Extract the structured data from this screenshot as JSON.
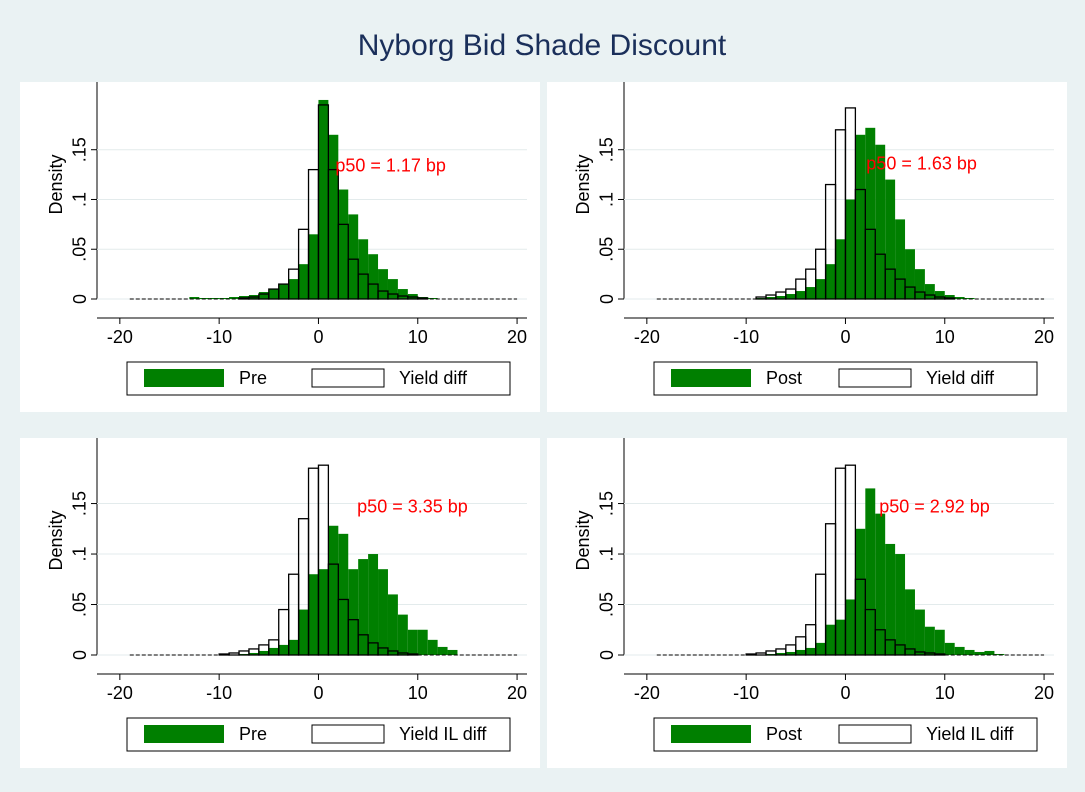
{
  "title": "Nyborg Bid Shade Discount",
  "chart_data": [
    {
      "type": "histogram",
      "ylabel": "Density",
      "annotation": "p50 = 1.17 bp",
      "grid": true,
      "bins": [
        -19,
        -18,
        -17,
        -16,
        -15,
        -14,
        -13,
        -12,
        -11,
        -10,
        -9,
        -8,
        -7,
        -6,
        -5,
        -4,
        -3,
        -2,
        -1,
        0,
        1,
        2,
        3,
        4,
        5,
        6,
        7,
        8,
        9,
        10,
        11,
        12,
        13,
        14,
        15,
        16,
        17,
        18,
        19,
        20
      ],
      "xlim": [
        -22.3,
        21
      ],
      "ylim": [
        0,
        0.21
      ],
      "xticks": [
        -20,
        -10,
        0,
        10,
        20
      ],
      "yticks": [
        0,
        {
          "value": 0.05,
          "label": ".05"
        },
        {
          "value": 0.1,
          "label": ".1"
        },
        {
          "value": 0.15,
          "label": ".15"
        }
      ],
      "series": [
        {
          "name": "Pre",
          "color": "#007f00",
          "edgecolor": "none",
          "values": [
            0,
            0,
            0,
            0,
            0,
            0,
            0.002,
            0.001,
            0.001,
            0.001,
            0.002,
            0.003,
            0.004,
            0.007,
            0.01,
            0.015,
            0.02,
            0.035,
            0.065,
            0.2,
            0.165,
            0.11,
            0.085,
            0.06,
            0.045,
            0.03,
            0.02,
            0.01,
            0.005,
            0.002,
            0.001,
            0,
            0,
            0,
            0,
            0,
            0,
            0,
            0
          ]
        },
        {
          "name": "Yield diff",
          "color": "none",
          "edgecolor": "#000000",
          "values": [
            0,
            0,
            0,
            0,
            0,
            0,
            0,
            0,
            0,
            0,
            0,
            0.001,
            0.002,
            0.005,
            0.01,
            0.015,
            0.03,
            0.07,
            0.13,
            0.195,
            0.13,
            0.075,
            0.04,
            0.025,
            0.015,
            0.008,
            0.005,
            0.003,
            0.002,
            0.001,
            0,
            0,
            0,
            0,
            0,
            0,
            0,
            0,
            0
          ]
        }
      ]
    },
    {
      "type": "histogram",
      "ylabel": "Density",
      "annotation": "p50 = 1.63 bp",
      "grid": true,
      "bins": [
        -19,
        -18,
        -17,
        -16,
        -15,
        -14,
        -13,
        -12,
        -11,
        -10,
        -9,
        -8,
        -7,
        -6,
        -5,
        -4,
        -3,
        -2,
        -1,
        0,
        1,
        2,
        3,
        4,
        5,
        6,
        7,
        8,
        9,
        10,
        11,
        12,
        13,
        14,
        15,
        16,
        17,
        18,
        19,
        20
      ],
      "xlim": [
        -22.3,
        21
      ],
      "ylim": [
        0,
        0.21
      ],
      "xticks": [
        -20,
        -10,
        0,
        10,
        20
      ],
      "yticks": [
        0,
        {
          "value": 0.05,
          "label": ".05"
        },
        {
          "value": 0.1,
          "label": ".1"
        },
        {
          "value": 0.15,
          "label": ".15"
        }
      ],
      "series": [
        {
          "name": "Post",
          "color": "#007f00",
          "edgecolor": "none",
          "values": [
            0,
            0,
            0,
            0,
            0,
            0,
            0,
            0,
            0,
            0,
            0.001,
            0.002,
            0.003,
            0.005,
            0.008,
            0.012,
            0.02,
            0.035,
            0.06,
            0.1,
            0.165,
            0.172,
            0.155,
            0.12,
            0.08,
            0.05,
            0.03,
            0.015,
            0.008,
            0.004,
            0.002,
            0.001,
            0,
            0,
            0,
            0,
            0,
            0,
            0
          ]
        },
        {
          "name": "Yield diff",
          "color": "none",
          "edgecolor": "#000000",
          "values": [
            0,
            0,
            0,
            0,
            0,
            0,
            0,
            0,
            0,
            0,
            0.002,
            0.004,
            0.007,
            0.01,
            0.02,
            0.03,
            0.05,
            0.115,
            0.17,
            0.192,
            0.11,
            0.07,
            0.045,
            0.03,
            0.02,
            0.012,
            0.007,
            0.004,
            0.002,
            0.001,
            0,
            0,
            0,
            0,
            0,
            0,
            0,
            0,
            0
          ]
        }
      ]
    },
    {
      "type": "histogram",
      "ylabel": "Density",
      "annotation": "p50 = 3.35 bp",
      "grid": true,
      "bins": [
        -19,
        -18,
        -17,
        -16,
        -15,
        -14,
        -13,
        -12,
        -11,
        -10,
        -9,
        -8,
        -7,
        -6,
        -5,
        -4,
        -3,
        -2,
        -1,
        0,
        1,
        2,
        3,
        4,
        5,
        6,
        7,
        8,
        9,
        10,
        11,
        12,
        13,
        14,
        15,
        16,
        17,
        18,
        19,
        20
      ],
      "xlim": [
        -22.3,
        21
      ],
      "ylim": [
        0,
        0.207
      ],
      "xticks": [
        -20,
        -10,
        0,
        10,
        20
      ],
      "yticks": [
        0,
        {
          "value": 0.05,
          "label": ".05"
        },
        {
          "value": 0.1,
          "label": ".1"
        },
        {
          "value": 0.15,
          "label": ".15"
        }
      ],
      "series": [
        {
          "name": "Pre",
          "color": "#007f00",
          "edgecolor": "none",
          "values": [
            0,
            0,
            0,
            0,
            0,
            0,
            0,
            0,
            0,
            0,
            0,
            0.001,
            0.002,
            0.004,
            0.007,
            0.01,
            0.015,
            0.045,
            0.08,
            0.085,
            0.128,
            0.12,
            0.085,
            0.095,
            0.1,
            0.085,
            0.06,
            0.04,
            0.025,
            0.025,
            0.015,
            0.008,
            0.005,
            0,
            0,
            0,
            0,
            0,
            0
          ]
        },
        {
          "name": "Yield IL diff",
          "color": "none",
          "edgecolor": "#000000",
          "values": [
            0,
            0,
            0,
            0,
            0,
            0,
            0,
            0,
            0,
            0.001,
            0.002,
            0.004,
            0.006,
            0.01,
            0.015,
            0.045,
            0.08,
            0.135,
            0.185,
            0.188,
            0.09,
            0.055,
            0.035,
            0.02,
            0.012,
            0.007,
            0.004,
            0.002,
            0.001,
            0,
            0,
            0,
            0,
            0,
            0,
            0,
            0,
            0,
            0
          ]
        }
      ]
    },
    {
      "type": "histogram",
      "ylabel": "Density",
      "annotation": "p50 = 2.92 bp",
      "grid": true,
      "bins": [
        -19,
        -18,
        -17,
        -16,
        -15,
        -14,
        -13,
        -12,
        -11,
        -10,
        -9,
        -8,
        -7,
        -6,
        -5,
        -4,
        -3,
        -2,
        -1,
        0,
        1,
        2,
        3,
        4,
        5,
        6,
        7,
        8,
        9,
        10,
        11,
        12,
        13,
        14,
        15,
        16,
        17,
        18,
        19,
        20
      ],
      "xlim": [
        -22.3,
        21
      ],
      "ylim": [
        0,
        0.207
      ],
      "xticks": [
        -20,
        -10,
        0,
        10,
        20
      ],
      "yticks": [
        0,
        {
          "value": 0.05,
          "label": ".05"
        },
        {
          "value": 0.1,
          "label": ".1"
        },
        {
          "value": 0.15,
          "label": ".15"
        }
      ],
      "series": [
        {
          "name": "Post",
          "color": "#007f00",
          "edgecolor": "none",
          "values": [
            0,
            0,
            0,
            0,
            0,
            0,
            0,
            0,
            0,
            0,
            0,
            0.001,
            0.002,
            0.003,
            0.005,
            0.007,
            0.012,
            0.03,
            0.035,
            0.055,
            0.125,
            0.165,
            0.14,
            0.11,
            0.1,
            0.065,
            0.045,
            0.028,
            0.025,
            0.012,
            0.008,
            0.005,
            0.003,
            0.004,
            0.001,
            0,
            0,
            0,
            0
          ]
        },
        {
          "name": "Yield IL diff",
          "color": "none",
          "edgecolor": "#000000",
          "values": [
            0,
            0,
            0,
            0,
            0,
            0,
            0,
            0,
            0,
            0.001,
            0.002,
            0.004,
            0.006,
            0.01,
            0.018,
            0.03,
            0.08,
            0.13,
            0.185,
            0.188,
            0.075,
            0.045,
            0.025,
            0.015,
            0.01,
            0.006,
            0.003,
            0.002,
            0.001,
            0,
            0,
            0,
            0,
            0,
            0,
            0,
            0,
            0,
            0
          ]
        }
      ]
    }
  ]
}
